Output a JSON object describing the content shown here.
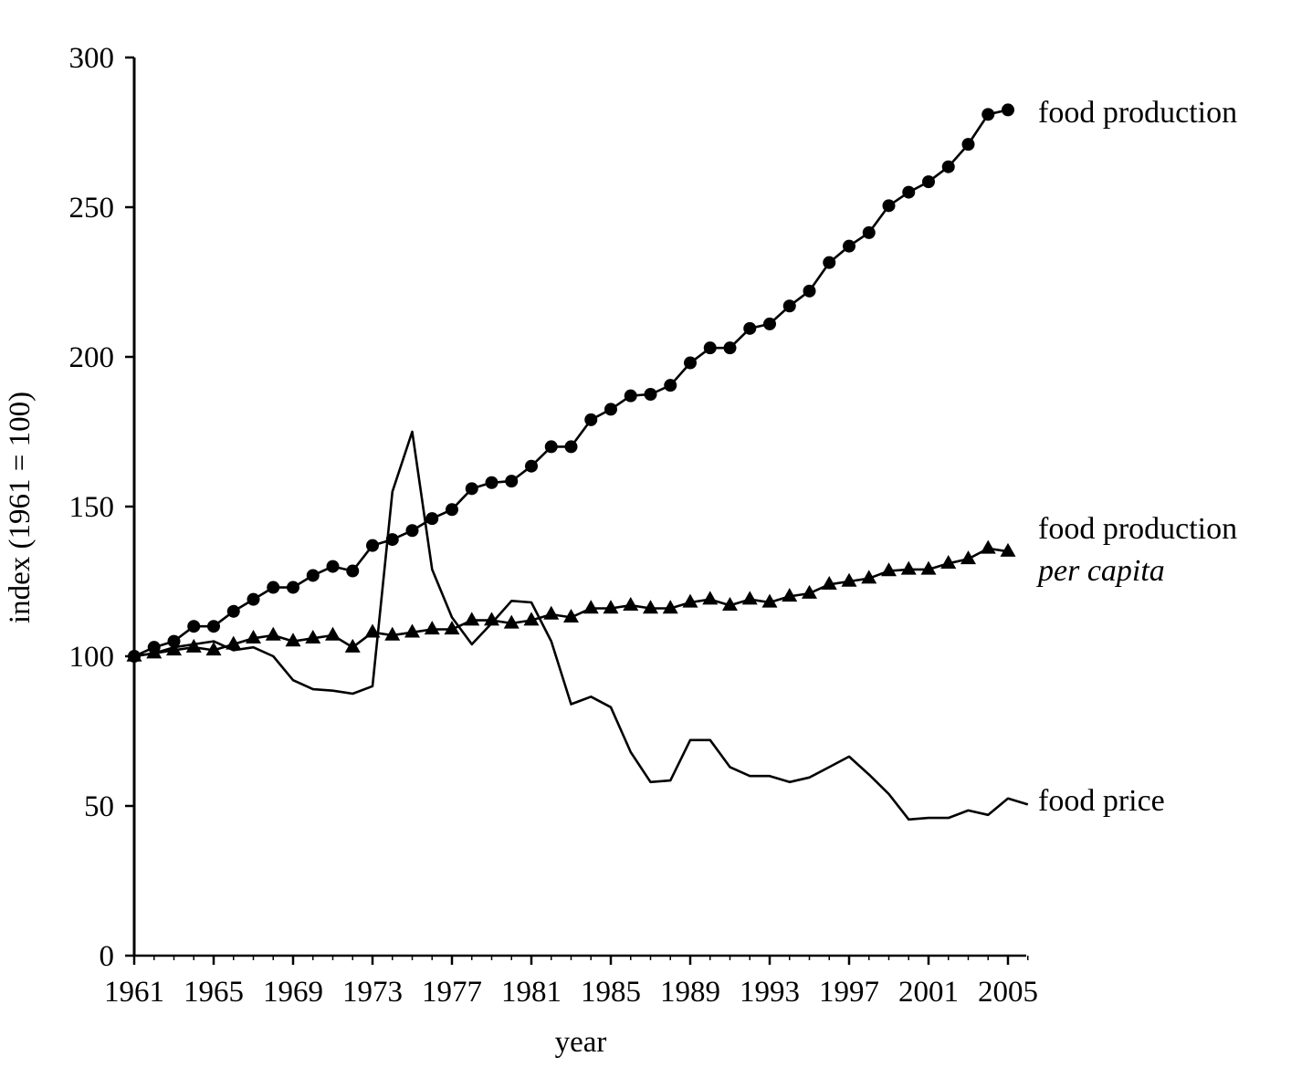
{
  "chart_data": {
    "type": "line",
    "title": "",
    "xlabel": "year",
    "ylabel": "index (1961 = 100)",
    "xlim": [
      1961,
      2006
    ],
    "ylim": [
      0,
      300
    ],
    "grid": false,
    "legend": "direct labels at right end of series",
    "x_ticks": [
      1961,
      1965,
      1969,
      1973,
      1977,
      1981,
      1985,
      1989,
      1993,
      1997,
      2001,
      2005
    ],
    "y_ticks": [
      0,
      50,
      100,
      150,
      200,
      250,
      300
    ],
    "x": [
      1961,
      1962,
      1963,
      1964,
      1965,
      1966,
      1967,
      1968,
      1969,
      1970,
      1971,
      1972,
      1973,
      1974,
      1975,
      1976,
      1977,
      1978,
      1979,
      1980,
      1981,
      1982,
      1983,
      1984,
      1985,
      1986,
      1987,
      1988,
      1989,
      1990,
      1991,
      1992,
      1993,
      1994,
      1995,
      1996,
      1997,
      1998,
      1999,
      2000,
      2001,
      2002,
      2003,
      2004,
      2005,
      2006
    ],
    "series": [
      {
        "name": "food production",
        "marker": "circle",
        "values": [
          100,
          103,
          105,
          110,
          110,
          115,
          119,
          123,
          123,
          127,
          130,
          128.5,
          137,
          139,
          142,
          146,
          149,
          156,
          158,
          158.5,
          163.5,
          170,
          170,
          179,
          182.5,
          187,
          187.5,
          190.5,
          198,
          203,
          203,
          209.5,
          211,
          217,
          222,
          231.5,
          237,
          241.5,
          250.5,
          255,
          258.5,
          263.5,
          271,
          281,
          282.5,
          null
        ]
      },
      {
        "name": "food production per capita",
        "label_line1": "food production",
        "label_line2": "per capita",
        "marker": "triangle",
        "values": [
          100,
          101,
          102,
          103,
          102,
          104,
          106,
          107,
          105,
          106,
          107,
          103,
          108,
          107,
          108,
          109,
          109,
          112,
          112,
          111,
          112,
          114,
          113,
          116,
          116,
          117,
          116,
          116,
          118,
          119,
          117,
          119,
          118,
          120,
          121,
          124,
          125,
          126,
          128.5,
          129,
          129,
          131,
          132.5,
          136,
          135,
          null
        ]
      },
      {
        "name": "food price",
        "marker": "none",
        "values": [
          100,
          101,
          103,
          104,
          105,
          102,
          103,
          100,
          92,
          89,
          88.5,
          87.5,
          90,
          155,
          175,
          129,
          113,
          104,
          111,
          118.5,
          118,
          105,
          84,
          86.5,
          83,
          68,
          58,
          58.5,
          72,
          72,
          63,
          60,
          60,
          58,
          59.5,
          63,
          66.5,
          60.5,
          54,
          45.5,
          46,
          46,
          48.5,
          47,
          52.5,
          50.5
        ]
      }
    ]
  }
}
